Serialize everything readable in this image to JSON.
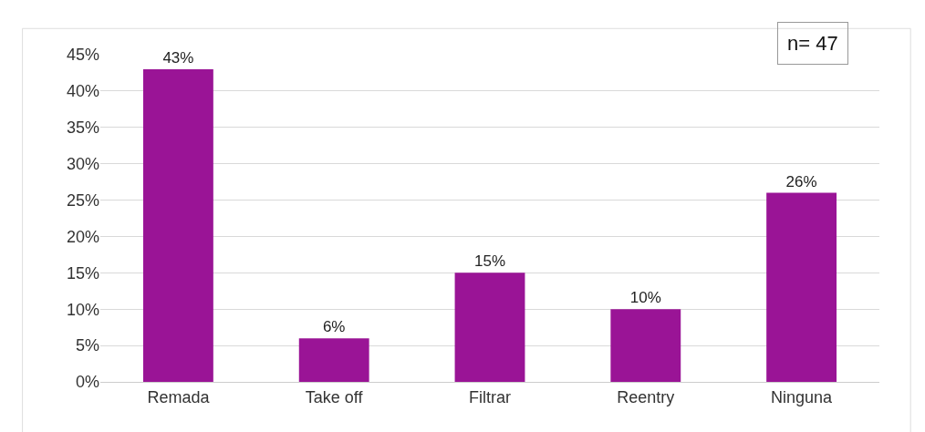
{
  "chart_data": {
    "type": "bar",
    "categories": [
      "Remada",
      "Take off",
      "Filtrar",
      "Reentry",
      "Ninguna"
    ],
    "values": [
      43,
      6,
      15,
      10,
      26
    ],
    "value_labels": [
      "43%",
      "6%",
      "15%",
      "10%",
      "26%"
    ],
    "color": "#9a1496",
    "ylim": [
      0,
      45
    ],
    "yticks": [
      {
        "value": 0,
        "label": "0%"
      },
      {
        "value": 5,
        "label": "5%"
      },
      {
        "value": 10,
        "label": "10%"
      },
      {
        "value": 15,
        "label": "15%"
      },
      {
        "value": 20,
        "label": "20%"
      },
      {
        "value": 25,
        "label": "25%"
      },
      {
        "value": 30,
        "label": "30%"
      },
      {
        "value": 35,
        "label": "35%"
      },
      {
        "value": 40,
        "label": "40%"
      },
      {
        "value": 45,
        "label": "45%"
      }
    ],
    "grid": "y",
    "annotations": [
      "n= 47"
    ]
  }
}
